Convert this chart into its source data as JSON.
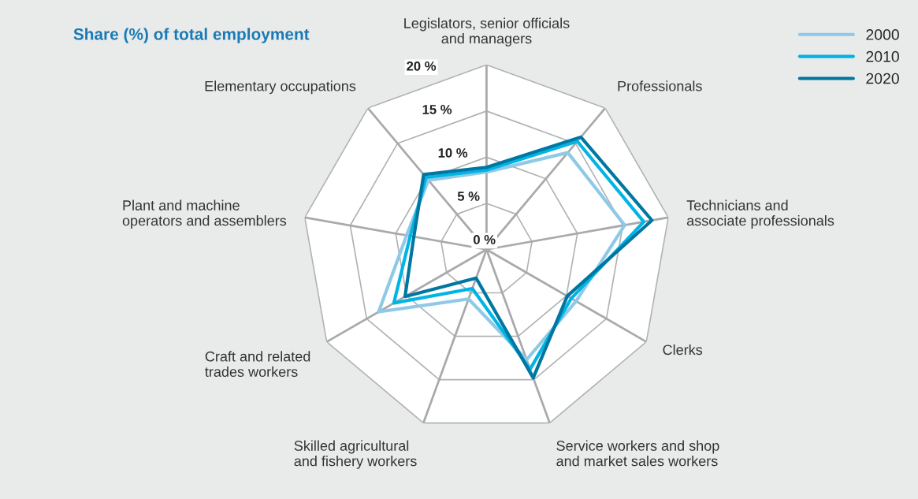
{
  "chart_data": {
    "type": "radar",
    "title": "Share (%) of total employment",
    "categories": [
      "Legislators, senior officials\nand managers",
      "Professionals",
      "Technicians and\nassociate professionals",
      "Clerks",
      "Service workers and shop\nand market sales workers",
      "Skilled agricultural\nand fishery workers",
      "Craft and related\ntrades workers",
      "Plant and machine\noperators and assemblers",
      "Elementary occupations"
    ],
    "series": [
      {
        "name": "2000",
        "color": "#8ecae6",
        "values": [
          8.4,
          13.7,
          15.2,
          11.2,
          12.7,
          5.7,
          13.5,
          8.8,
          9.8
        ]
      },
      {
        "name": "2010",
        "color": "#00b4e6",
        "values": [
          8.6,
          15.3,
          17.3,
          10.6,
          13.8,
          4.5,
          11.6,
          8.4,
          10.2
        ]
      },
      {
        "name": "2020",
        "color": "#0077a0",
        "values": [
          8.9,
          15.9,
          18.2,
          10.1,
          14.8,
          3.3,
          10.2,
          8.0,
          10.6
        ]
      }
    ],
    "ylim": [
      0,
      20
    ],
    "yticks": [
      {
        "value": 0,
        "label": "0 %"
      },
      {
        "value": 5,
        "label": "5 %"
      },
      {
        "value": 10,
        "label": "10 %"
      },
      {
        "value": 15,
        "label": "15 %"
      },
      {
        "value": 20,
        "label": "20 %"
      }
    ],
    "grid": true,
    "legend": "top right",
    "line_style": "solid",
    "marker": "none"
  }
}
